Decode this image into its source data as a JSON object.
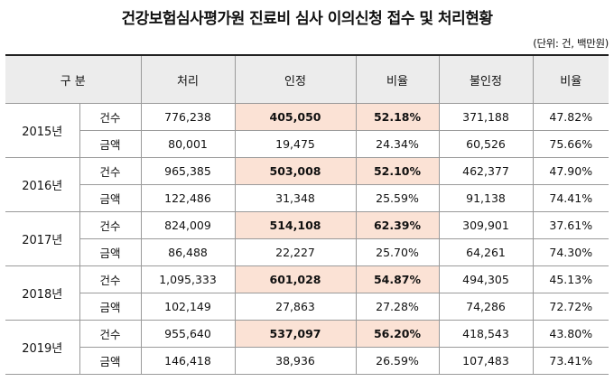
{
  "title": "건강보험심사평가원 진료비 심사 이의신청 접수 및 처리현황",
  "unit": "(단위: 건, 백만원)",
  "headers": {
    "category": "구 분",
    "processed": "처리",
    "accepted": "인정",
    "accepted_ratio": "비율",
    "rejected": "불인정",
    "rejected_ratio": "비율"
  },
  "rows": [
    {
      "year": "2015년",
      "count": {
        "label": "건수",
        "processed": "776,238",
        "accepted": "405,050",
        "accepted_ratio": "52.18%",
        "rejected": "371,188",
        "rejected_ratio": "47.82%"
      },
      "amount": {
        "label": "금액",
        "processed": "80,001",
        "accepted": "19,475",
        "accepted_ratio": "24.34%",
        "rejected": "60,526",
        "rejected_ratio": "75.66%"
      }
    },
    {
      "year": "2016년",
      "count": {
        "label": "건수",
        "processed": "965,385",
        "accepted": "503,008",
        "accepted_ratio": "52.10%",
        "rejected": "462,377",
        "rejected_ratio": "47.90%"
      },
      "amount": {
        "label": "금액",
        "processed": "122,486",
        "accepted": "31,348",
        "accepted_ratio": "25.59%",
        "rejected": "91,138",
        "rejected_ratio": "74.41%"
      }
    },
    {
      "year": "2017년",
      "count": {
        "label": "건수",
        "processed": "824,009",
        "accepted": "514,108",
        "accepted_ratio": "62.39%",
        "rejected": "309,901",
        "rejected_ratio": "37.61%"
      },
      "amount": {
        "label": "금액",
        "processed": "86,488",
        "accepted": "22,227",
        "accepted_ratio": "25.70%",
        "rejected": "64,261",
        "rejected_ratio": "74.30%"
      }
    },
    {
      "year": "2018년",
      "count": {
        "label": "건수",
        "processed": "1,095,333",
        "accepted": "601,028",
        "accepted_ratio": "54.87%",
        "rejected": "494,305",
        "rejected_ratio": "45.13%"
      },
      "amount": {
        "label": "금액",
        "processed": "102,149",
        "accepted": "27,863",
        "accepted_ratio": "27.28%",
        "rejected": "74,286",
        "rejected_ratio": "72.72%"
      }
    },
    {
      "year": "2019년",
      "count": {
        "label": "건수",
        "processed": "955,640",
        "accepted": "537,097",
        "accepted_ratio": "56.20%",
        "rejected": "418,543",
        "rejected_ratio": "43.80%"
      },
      "amount": {
        "label": "금액",
        "processed": "146,418",
        "accepted": "38,936",
        "accepted_ratio": "26.59%",
        "rejected": "107,483",
        "rejected_ratio": "73.41%"
      }
    }
  ],
  "colors": {
    "highlight": "#fbe2d5",
    "header_bg": "#ececec"
  }
}
